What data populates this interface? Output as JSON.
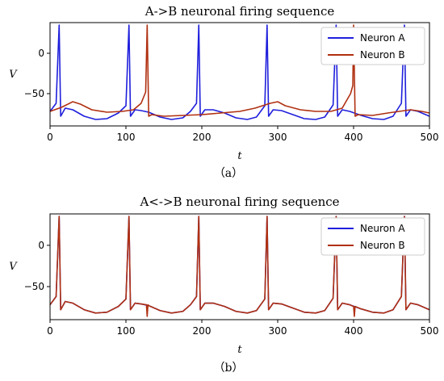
{
  "chart_data": [
    {
      "type": "line",
      "title": "A->B neuronal firing sequence",
      "caption": "（a）",
      "xlabel": "t",
      "ylabel": "V",
      "xlim": [
        0,
        500
      ],
      "ylim": [
        -90,
        38
      ],
      "xticks": [
        0,
        100,
        200,
        300,
        400,
        500
      ],
      "yticks": [
        0,
        -50
      ],
      "legend_position": "top-right",
      "grid": false,
      "series": [
        {
          "name": "Neuron A",
          "color": "#1f1fdc",
          "x": [
            0,
            8,
            12,
            14,
            20,
            30,
            45,
            60,
            75,
            90,
            100,
            104,
            106,
            112,
            120,
            130,
            145,
            160,
            175,
            185,
            193,
            196,
            198,
            204,
            215,
            230,
            245,
            260,
            272,
            283,
            286,
            288,
            294,
            305,
            320,
            335,
            350,
            362,
            373,
            377,
            379,
            385,
            395,
            410,
            425,
            440,
            452,
            463,
            467,
            469,
            475,
            485,
            500
          ],
          "y": [
            -72,
            -62,
            35,
            -78,
            -68,
            -70,
            -78,
            -82,
            -81,
            -74,
            -65,
            35,
            -78,
            -70,
            -71,
            -73,
            -79,
            -82,
            -80,
            -72,
            -62,
            35,
            -78,
            -70,
            -70,
            -74,
            -80,
            -82,
            -79,
            -65,
            35,
            -78,
            -70,
            -71,
            -76,
            -81,
            -82,
            -79,
            -64,
            35,
            -78,
            -70,
            -72,
            -77,
            -81,
            -82,
            -78,
            -62,
            35,
            -78,
            -70,
            -72,
            -78
          ]
        },
        {
          "name": "Neuron B",
          "color": "#b03010",
          "x": [
            0,
            15,
            30,
            40,
            55,
            75,
            95,
            110,
            120,
            126,
            128,
            130,
            134,
            150,
            175,
            200,
            225,
            250,
            270,
            290,
            300,
            310,
            330,
            350,
            370,
            385,
            396,
            399,
            400,
            402,
            406,
            425,
            445,
            460,
            475,
            490,
            500
          ],
          "y": [
            -72,
            -67,
            -60,
            -63,
            -70,
            -73,
            -72,
            -70,
            -62,
            -48,
            35,
            -78,
            -76,
            -78,
            -77,
            -76,
            -74,
            -72,
            -68,
            -62,
            -60,
            -65,
            -70,
            -72,
            -72,
            -68,
            -50,
            -40,
            35,
            -78,
            -76,
            -77,
            -74,
            -72,
            -70,
            -72,
            -74
          ]
        }
      ]
    },
    {
      "type": "line",
      "title": "A<->B neuronal firing sequence",
      "caption": "（b）",
      "xlabel": "t",
      "ylabel": "V",
      "xlim": [
        0,
        500
      ],
      "ylim": [
        -90,
        38
      ],
      "xticks": [
        0,
        100,
        200,
        300,
        400,
        500
      ],
      "yticks": [
        0,
        -50
      ],
      "legend_position": "top-right",
      "grid": false,
      "series": [
        {
          "name": "Neuron A",
          "color": "#1f1fdc",
          "x": [
            0,
            8,
            12,
            14,
            20,
            30,
            45,
            60,
            75,
            90,
            100,
            104,
            106,
            112,
            120,
            130,
            145,
            160,
            175,
            185,
            193,
            196,
            198,
            204,
            215,
            230,
            245,
            260,
            272,
            283,
            286,
            288,
            294,
            305,
            320,
            335,
            350,
            362,
            373,
            377,
            379,
            385,
            395,
            410,
            425,
            440,
            452,
            463,
            467,
            469,
            475,
            485,
            500
          ],
          "y": [
            -72,
            -62,
            35,
            -78,
            -68,
            -70,
            -78,
            -82,
            -81,
            -74,
            -65,
            35,
            -78,
            -70,
            -71,
            -73,
            -79,
            -82,
            -80,
            -72,
            -62,
            35,
            -78,
            -70,
            -70,
            -74,
            -80,
            -82,
            -79,
            -65,
            35,
            -78,
            -70,
            -71,
            -76,
            -81,
            -82,
            -79,
            -64,
            35,
            -78,
            -70,
            -72,
            -77,
            -81,
            -82,
            -78,
            -62,
            35,
            -78,
            -70,
            -72,
            -78
          ]
        },
        {
          "name": "Neuron B",
          "color": "#b03010",
          "x": [
            0,
            8,
            12,
            14,
            20,
            30,
            45,
            60,
            75,
            90,
            100,
            104,
            106,
            112,
            120,
            127,
            128,
            129,
            130,
            145,
            160,
            175,
            185,
            193,
            196,
            198,
            204,
            215,
            230,
            245,
            260,
            272,
            283,
            286,
            288,
            294,
            305,
            320,
            335,
            350,
            362,
            373,
            377,
            379,
            385,
            395,
            400,
            401,
            402,
            410,
            425,
            440,
            452,
            463,
            467,
            469,
            475,
            485,
            500
          ],
          "y": [
            -72,
            -62,
            35,
            -78,
            -68,
            -70,
            -78,
            -82,
            -81,
            -74,
            -65,
            35,
            -78,
            -70,
            -71,
            -72,
            -86,
            -72,
            -73,
            -79,
            -82,
            -80,
            -72,
            -62,
            35,
            -78,
            -70,
            -70,
            -74,
            -80,
            -82,
            -79,
            -65,
            35,
            -78,
            -70,
            -71,
            -76,
            -81,
            -82,
            -79,
            -64,
            35,
            -78,
            -70,
            -72,
            -74,
            -86,
            -74,
            -77,
            -81,
            -82,
            -78,
            -62,
            35,
            -78,
            -70,
            -72,
            -78
          ]
        }
      ]
    }
  ]
}
